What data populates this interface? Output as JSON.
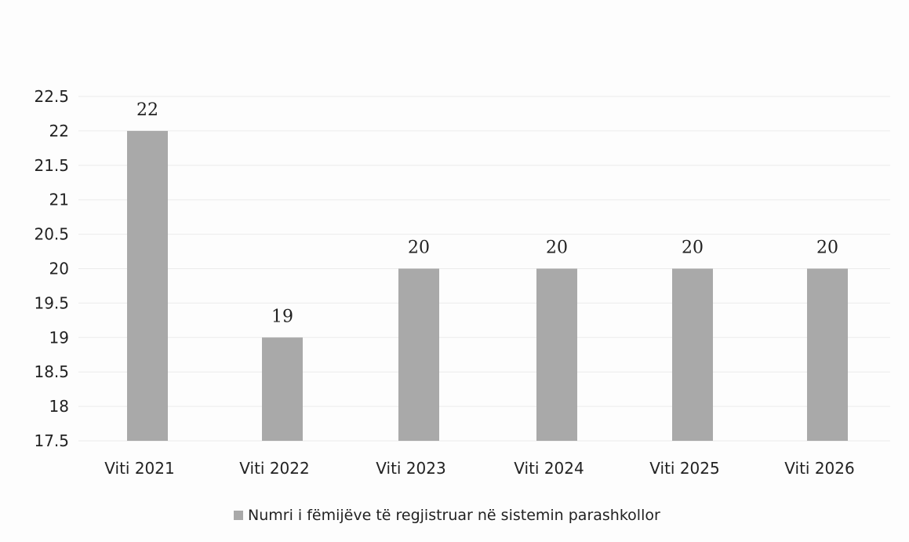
{
  "chart_data": {
    "type": "bar",
    "title": "",
    "xlabel": "",
    "ylabel": "",
    "categories": [
      "Viti 2021",
      "Viti 2022",
      "Viti 2023",
      "Viti 2024",
      "Viti 2025",
      "Viti 2026"
    ],
    "series": [
      {
        "name": "Numri i fëmijëve të regjistruar në sistemin parashkollor",
        "values": [
          22,
          19,
          20,
          20,
          20,
          20
        ]
      }
    ],
    "data_labels": [
      "22",
      "19",
      "20",
      "20",
      "20",
      "20"
    ],
    "ylim": [
      17.5,
      22.5
    ],
    "y_ticks": [
      "17.5",
      "18",
      "18.5",
      "19",
      "19.5",
      "20",
      "20.5",
      "21",
      "21.5",
      "22",
      "22.5"
    ],
    "grid": true,
    "legend_position": "bottom",
    "colors": {
      "bar": "#a9a9a9",
      "text": "#222222",
      "grid": "#ececec"
    }
  }
}
